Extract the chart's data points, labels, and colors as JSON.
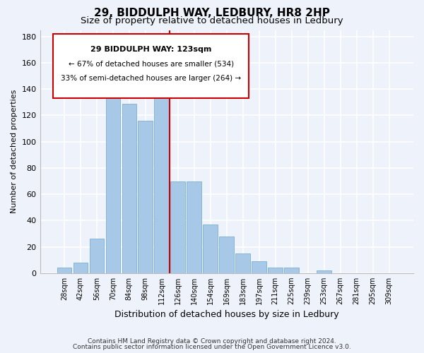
{
  "title": "29, BIDDULPH WAY, LEDBURY, HR8 2HP",
  "subtitle": "Size of property relative to detached houses in Ledbury",
  "xlabel": "Distribution of detached houses by size in Ledbury",
  "ylabel": "Number of detached properties",
  "bar_labels": [
    "28sqm",
    "42sqm",
    "56sqm",
    "70sqm",
    "84sqm",
    "98sqm",
    "112sqm",
    "126sqm",
    "140sqm",
    "154sqm",
    "169sqm",
    "183sqm",
    "197sqm",
    "211sqm",
    "225sqm",
    "239sqm",
    "253sqm",
    "267sqm",
    "281sqm",
    "295sqm",
    "309sqm"
  ],
  "bar_values": [
    4,
    8,
    26,
    145,
    129,
    116,
    140,
    70,
    70,
    37,
    28,
    15,
    9,
    4,
    4,
    0,
    2,
    0,
    0,
    0,
    0
  ],
  "bar_color": "#a8c8e8",
  "bar_edge_color": "#7ab0d4",
  "vline_color": "#cc0000",
  "annotation_title": "29 BIDDULPH WAY: 123sqm",
  "annotation_line1": "← 67% of detached houses are smaller (534)",
  "annotation_line2": "33% of semi-detached houses are larger (264) →",
  "annotation_box_color": "#ffffff",
  "annotation_box_edge": "#cc0000",
  "footer1": "Contains HM Land Registry data © Crown copyright and database right 2024.",
  "footer2": "Contains public sector information licensed under the Open Government Licence v3.0.",
  "ylim": [
    0,
    185
  ],
  "background_color": "#eef2fa"
}
